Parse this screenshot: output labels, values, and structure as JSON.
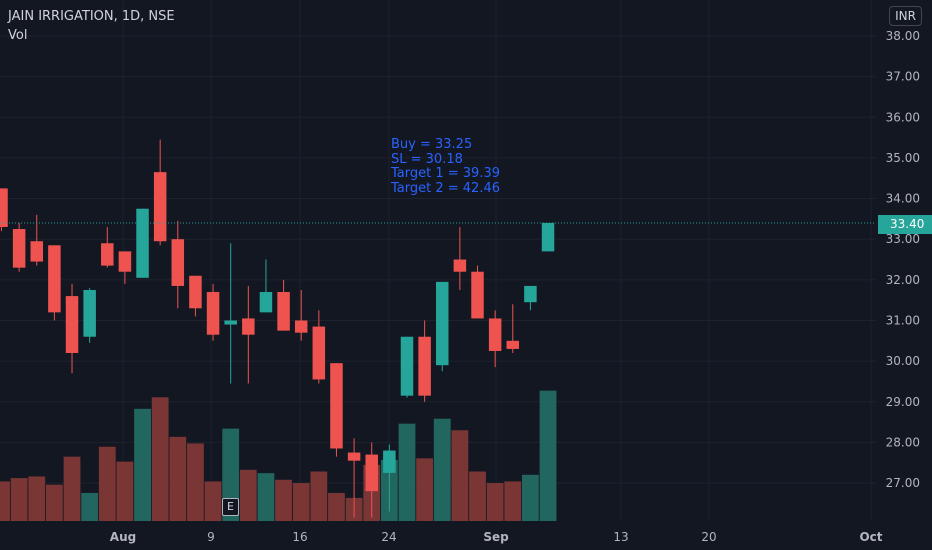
{
  "header": {
    "title": "JAIN IRRIGATION, 1D, NSE",
    "volume_label": "Vol",
    "currency": "INR"
  },
  "annotation": {
    "lines": [
      "Buy = 33.25",
      "SL = 30.18",
      "Target 1 = 39.39",
      "Target 2 = 42.46"
    ]
  },
  "earnings_badge": "E",
  "last_price_label": "33.40",
  "colors": {
    "background": "#131722",
    "up": "#26a69a",
    "down": "#ef5350",
    "volume_up": "#22675f",
    "volume_down": "#7a3535",
    "grid": "#1e222d",
    "axis_text": "#b2b5be",
    "annotation": "#2962ff"
  },
  "chart_data": {
    "type": "candlestick",
    "title": "JAIN IRRIGATION, 1D, NSE",
    "y_axis": {
      "ticks": [
        "38.00",
        "37.00",
        "36.00",
        "35.00",
        "34.00",
        "33.00",
        "32.00",
        "31.00",
        "30.00",
        "29.00",
        "28.00",
        "27.00"
      ],
      "range": [
        26.1,
        38.4
      ],
      "position": "right"
    },
    "x_axis": {
      "ticks": [
        "Aug",
        "9",
        "16",
        "24",
        "Sep",
        "13",
        "20",
        "Oct"
      ]
    },
    "last_price": 33.4,
    "candles": [
      {
        "o": 34.25,
        "h": 34.25,
        "l": 33.2,
        "c": 33.3
      },
      {
        "o": 33.25,
        "h": 33.4,
        "l": 32.2,
        "c": 32.3
      },
      {
        "o": 32.95,
        "h": 33.6,
        "l": 32.35,
        "c": 32.45
      },
      {
        "o": 32.85,
        "h": 32.85,
        "l": 31.0,
        "c": 31.2
      },
      {
        "o": 31.6,
        "h": 31.9,
        "l": 29.7,
        "c": 30.2
      },
      {
        "o": 30.6,
        "h": 31.8,
        "l": 30.45,
        "c": 31.75
      },
      {
        "o": 32.9,
        "h": 33.3,
        "l": 32.3,
        "c": 32.35
      },
      {
        "o": 32.7,
        "h": 32.7,
        "l": 31.9,
        "c": 32.2
      },
      {
        "o": 32.05,
        "h": 33.75,
        "l": 32.05,
        "c": 33.75
      },
      {
        "o": 34.65,
        "h": 35.45,
        "l": 32.85,
        "c": 32.95
      },
      {
        "o": 33.0,
        "h": 33.45,
        "l": 31.3,
        "c": 31.85
      },
      {
        "o": 32.1,
        "h": 32.1,
        "l": 31.1,
        "c": 31.3
      },
      {
        "o": 31.7,
        "h": 31.9,
        "l": 30.5,
        "c": 30.65
      },
      {
        "o": 30.9,
        "h": 32.9,
        "l": 29.45,
        "c": 31.0
      },
      {
        "o": 31.05,
        "h": 31.85,
        "l": 29.45,
        "c": 30.65
      },
      {
        "o": 31.2,
        "h": 32.5,
        "l": 31.2,
        "c": 31.7
      },
      {
        "o": 31.7,
        "h": 32.0,
        "l": 30.75,
        "c": 30.75
      },
      {
        "o": 31.0,
        "h": 31.75,
        "l": 30.5,
        "c": 30.7
      },
      {
        "o": 30.85,
        "h": 31.25,
        "l": 29.45,
        "c": 29.55
      },
      {
        "o": 29.95,
        "h": 29.95,
        "l": 27.65,
        "c": 27.85
      },
      {
        "o": 27.75,
        "h": 28.1,
        "l": 26.15,
        "c": 27.55
      },
      {
        "o": 27.7,
        "h": 28.0,
        "l": 26.15,
        "c": 26.8
      },
      {
        "o": 27.25,
        "h": 27.95,
        "l": 26.3,
        "c": 27.8
      },
      {
        "o": 29.15,
        "h": 30.6,
        "l": 29.1,
        "c": 30.6
      },
      {
        "o": 30.6,
        "h": 31.0,
        "l": 29.0,
        "c": 29.15
      },
      {
        "o": 29.9,
        "h": 31.95,
        "l": 29.75,
        "c": 31.95
      },
      {
        "o": 32.5,
        "h": 33.3,
        "l": 31.75,
        "c": 32.2
      },
      {
        "o": 32.2,
        "h": 32.35,
        "l": 31.05,
        "c": 31.05
      },
      {
        "o": 31.05,
        "h": 31.25,
        "l": 29.85,
        "c": 30.25
      },
      {
        "o": 30.5,
        "h": 31.4,
        "l": 30.2,
        "c": 30.3
      },
      {
        "o": 31.45,
        "h": 31.85,
        "l": 31.25,
        "c": 31.85
      },
      {
        "o": 32.7,
        "h": 33.4,
        "l": 32.7,
        "c": 33.4
      }
    ],
    "volume_relative": [
      0.24,
      0.26,
      0.27,
      0.22,
      0.39,
      0.17,
      0.45,
      0.36,
      0.68,
      0.75,
      0.51,
      0.47,
      0.24,
      0.56,
      0.31,
      0.29,
      0.25,
      0.23,
      0.3,
      0.17,
      0.14,
      0.34,
      0.37,
      0.59,
      0.38,
      0.62,
      0.55,
      0.3,
      0.23,
      0.24,
      0.28,
      0.79
    ]
  }
}
